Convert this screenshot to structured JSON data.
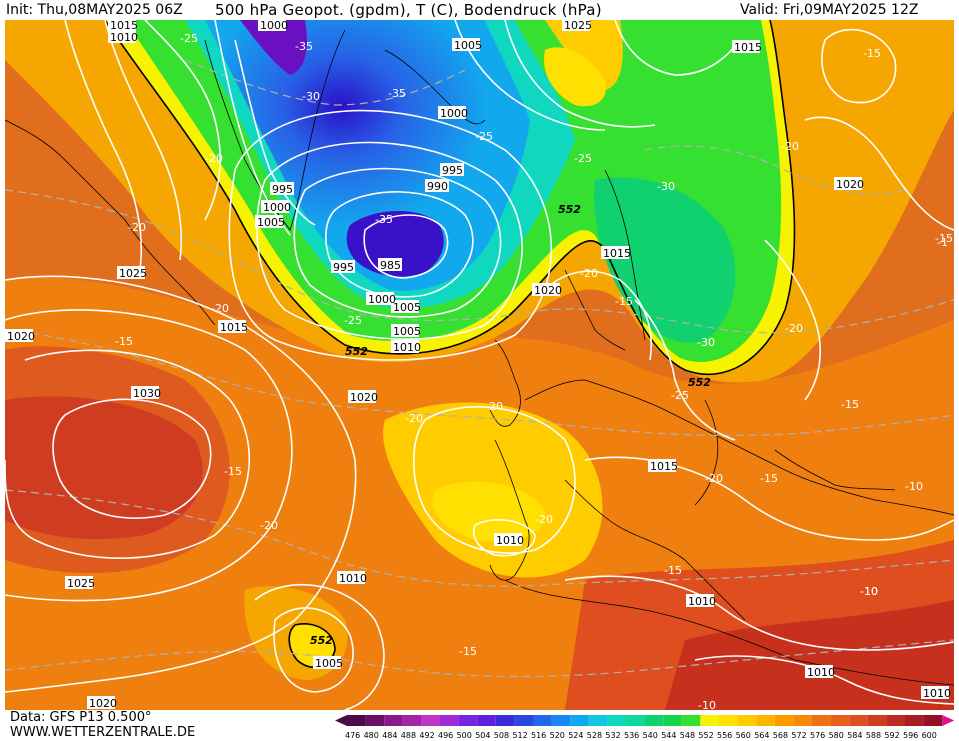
{
  "header": {
    "init": "Init: Thu,08MAY2025 06Z",
    "title": "500 hPa Geopot. (gpdm), T (C), Bodendruck (hPa)",
    "valid": "Valid: Fri,09MAY2025 12Z"
  },
  "footer": {
    "data_source": "Data: GFS P13 0.500°",
    "website": "WWW.WETTERZENTRALE.DE"
  },
  "legend": {
    "values": [
      "476",
      "480",
      "484",
      "488",
      "492",
      "496",
      "500",
      "504",
      "508",
      "512",
      "516",
      "520",
      "524",
      "528",
      "532",
      "536",
      "540",
      "544",
      "548",
      "552",
      "556",
      "560",
      "564",
      "568",
      "572",
      "576",
      "580",
      "584",
      "588",
      "592",
      "596",
      "600"
    ],
    "colors": [
      "#4b0a4a",
      "#6a0f6a",
      "#8a1a8a",
      "#a424a8",
      "#bf34c9",
      "#a02cd8",
      "#7a25e0",
      "#5a22dc",
      "#3a2cd6",
      "#2a48e0",
      "#2266ea",
      "#1a86f0",
      "#12a8ee",
      "#10c8e2",
      "#10d8c0",
      "#10d898",
      "#10d070",
      "#18d448",
      "#36e030",
      "#f6f200",
      "#ffe000",
      "#ffcc00",
      "#ffb400",
      "#fc9c00",
      "#f88a08",
      "#ef7212",
      "#e8601a",
      "#de4e1e",
      "#cf3c20",
      "#bc2a22",
      "#a81c24",
      "#94102a"
    ]
  },
  "pressure_labels": [
    "1015",
    "1010",
    "1000",
    "1025",
    "1005",
    "1015",
    "1000",
    "1005",
    "995",
    "1000",
    "1005",
    "990",
    "995",
    "985",
    "995",
    "1000",
    "1005",
    "1010",
    "1015",
    "1020",
    "1025",
    "1020",
    "1020",
    "1015",
    "1030",
    "1020",
    "1025",
    "1010",
    "1010",
    "1010",
    "1015",
    "1010",
    "1005",
    "1020",
    "1010",
    "1010",
    "1010"
  ],
  "temperature_labels": [
    "-25",
    "-35",
    "-30",
    "-35",
    "-25",
    "-25",
    "-15",
    "-20",
    "-20",
    "-20",
    "-30",
    "-20",
    "-15",
    "-10",
    "-35",
    "-25",
    "-20",
    "-15",
    "-20",
    "-20",
    "-30",
    "-25",
    "-20",
    "-15",
    "-15",
    "-20",
    "-20",
    "-20",
    "-15",
    "-15",
    "-10",
    "-15",
    "-10",
    "-15",
    "-10",
    "-1"
  ],
  "geopotential_labels": [
    "552",
    "552",
    "552",
    "552"
  ]
}
